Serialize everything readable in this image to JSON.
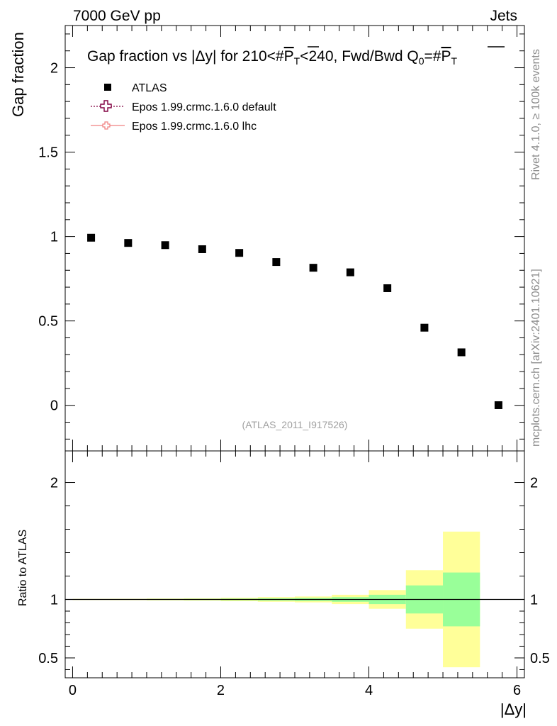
{
  "header": {
    "left": "7000 GeV pp",
    "right": "Jets"
  },
  "side_labels": {
    "rivet": "Rivet 4.1.0, ≥ 100k events",
    "mcplots": "mcplots.cern.ch [arXiv:2401.10621]"
  },
  "chart_data": [
    {
      "type": "scatter",
      "title": "Gap fraction vs |Δy| for 210<#P̅T<240, Fwd/Bwd Q0=#P̅T",
      "title_parts": {
        "a": "Gap fraction vs |Δy| for 210<#",
        "b": "P",
        "c": "T",
        "d": "<240, Fwd/Bwd Q",
        "e": "0",
        "f": "=#",
        "g": "P",
        "h": "T"
      },
      "ylabel": "Gap fraction",
      "xlim": [
        -0.1,
        6.1
      ],
      "ylim": [
        -0.27,
        2.25
      ],
      "yticks": [
        0,
        0.5,
        1,
        1.5,
        2
      ],
      "ytick_labels": [
        "0",
        "0.5",
        "1",
        "1.5",
        "2"
      ],
      "watermark": "(ATLAS_2011_I917526)",
      "legend": [
        {
          "name": "ATLAS",
          "color": "#000000"
        },
        {
          "name": "Epos 1.99.crmc.1.6.0 default",
          "color": "#800040"
        },
        {
          "name": "Epos 1.99.crmc.1.6.0 lhc",
          "color": "#f08080"
        }
      ],
      "series": [
        {
          "name": "ATLAS",
          "x": [
            0.25,
            0.75,
            1.25,
            1.75,
            2.25,
            2.75,
            3.25,
            3.75,
            4.25,
            4.75,
            5.25,
            5.75
          ],
          "y": [
            0.993,
            0.962,
            0.949,
            0.925,
            0.903,
            0.849,
            0.815,
            0.788,
            0.694,
            0.46,
            0.314,
            0.001
          ]
        }
      ]
    },
    {
      "type": "bar",
      "ylabel": "Ratio to ATLAS",
      "xlabel": "|Δy|",
      "xlim": [
        -0.1,
        6.1
      ],
      "ylim": [
        0.33,
        2.27
      ],
      "xticks": [
        0,
        2,
        4,
        6
      ],
      "xtick_labels": [
        "0",
        "2",
        "4",
        "6"
      ],
      "yticks": [
        0.5,
        1,
        2
      ],
      "ytick_labels": [
        "0.5",
        "1",
        "2"
      ],
      "colors": {
        "yellow": "#ffff99",
        "green": "#99ff99"
      },
      "bins": [
        {
          "lo": 0.0,
          "hi": 0.5,
          "y_lo": 0.995,
          "y_hi": 1.005,
          "g_lo": 0.998,
          "g_hi": 1.002
        },
        {
          "lo": 0.5,
          "hi": 1.0,
          "y_lo": 0.994,
          "y_hi": 1.006,
          "g_lo": 0.997,
          "g_hi": 1.003
        },
        {
          "lo": 1.0,
          "hi": 1.5,
          "y_lo": 0.992,
          "y_hi": 1.008,
          "g_lo": 0.996,
          "g_hi": 1.004
        },
        {
          "lo": 1.5,
          "hi": 2.0,
          "y_lo": 0.99,
          "y_hi": 1.01,
          "g_lo": 0.995,
          "g_hi": 1.005
        },
        {
          "lo": 2.0,
          "hi": 2.5,
          "y_lo": 0.985,
          "y_hi": 1.015,
          "g_lo": 0.993,
          "g_hi": 1.007
        },
        {
          "lo": 2.5,
          "hi": 3.0,
          "y_lo": 0.98,
          "y_hi": 1.02,
          "g_lo": 0.99,
          "g_hi": 1.01
        },
        {
          "lo": 3.0,
          "hi": 3.5,
          "y_lo": 0.975,
          "y_hi": 1.025,
          "g_lo": 0.987,
          "g_hi": 1.013
        },
        {
          "lo": 3.5,
          "hi": 4.0,
          "y_lo": 0.96,
          "y_hi": 1.04,
          "g_lo": 0.98,
          "g_hi": 1.02
        },
        {
          "lo": 4.0,
          "hi": 4.5,
          "y_lo": 0.92,
          "y_hi": 1.08,
          "g_lo": 0.96,
          "g_hi": 1.04
        },
        {
          "lo": 4.5,
          "hi": 5.0,
          "y_lo": 0.75,
          "y_hi": 1.25,
          "g_lo": 0.88,
          "g_hi": 1.12
        },
        {
          "lo": 5.0,
          "hi": 5.5,
          "y_lo": 0.42,
          "y_hi": 1.58,
          "g_lo": 0.77,
          "g_hi": 1.23
        }
      ],
      "reference_line": 1
    }
  ]
}
